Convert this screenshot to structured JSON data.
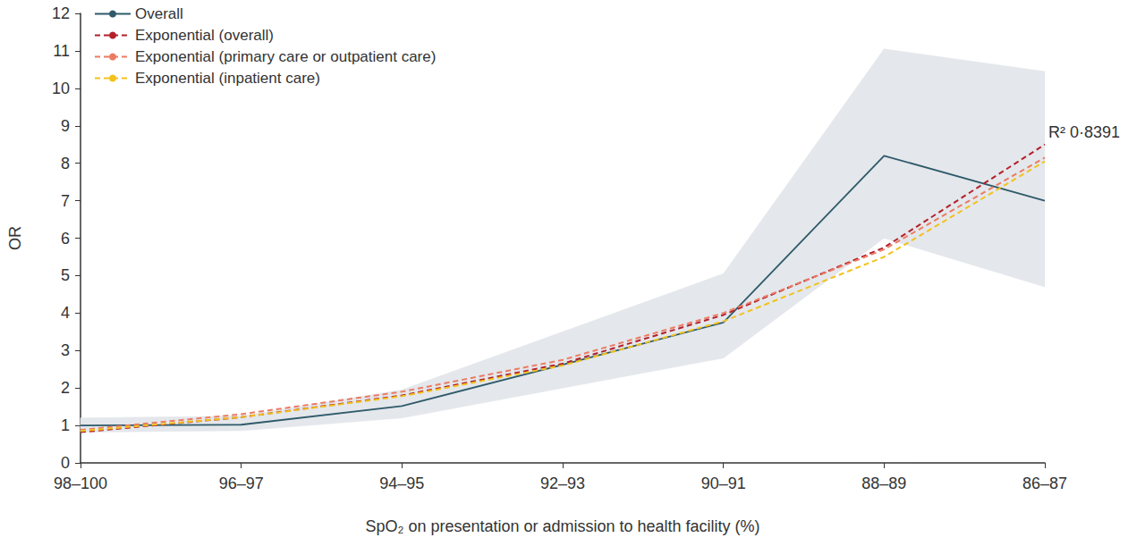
{
  "chart_data": {
    "type": "line",
    "categories": [
      "98–100",
      "96–97",
      "94–95",
      "92–93",
      "90–91",
      "88–89",
      "86–87"
    ],
    "x_label": "SpO₂ on presentation or admission to health facility (%)",
    "y_label": "OR",
    "ylim": [
      0,
      12
    ],
    "yticks": [
      0,
      1,
      2,
      3,
      4,
      5,
      6,
      7,
      8,
      9,
      10,
      11,
      12
    ],
    "grid": false,
    "legend": "upper left",
    "series": [
      {
        "name": "Overall",
        "color": "#2e5a6a",
        "line_style": "solid",
        "values": [
          1.0,
          1.02,
          1.52,
          2.62,
          3.75,
          8.2,
          7.0
        ],
        "ci_lower": [
          0.82,
          0.86,
          1.2,
          2.0,
          2.8,
          6.0,
          4.7
        ],
        "ci_upper": [
          1.2,
          1.25,
          1.95,
          3.5,
          5.05,
          11.05,
          10.45
        ]
      },
      {
        "name": "Exponential (overall)",
        "color": "#b3202a",
        "line_style": "dashed",
        "values": [
          0.82,
          1.22,
          1.8,
          2.65,
          3.95,
          5.75,
          8.5
        ],
        "annotation": "R² 0·8391"
      },
      {
        "name": "Exponential (primary care or outpatient care)",
        "color": "#ec7b62",
        "line_style": "dashed",
        "values": [
          0.88,
          1.3,
          1.9,
          2.75,
          4.0,
          5.7,
          8.15
        ]
      },
      {
        "name": "Exponential (inpatient care)",
        "color": "#f2c21b",
        "line_style": "dashed",
        "values": [
          0.85,
          1.22,
          1.78,
          2.6,
          3.78,
          5.5,
          8.05
        ]
      }
    ]
  }
}
